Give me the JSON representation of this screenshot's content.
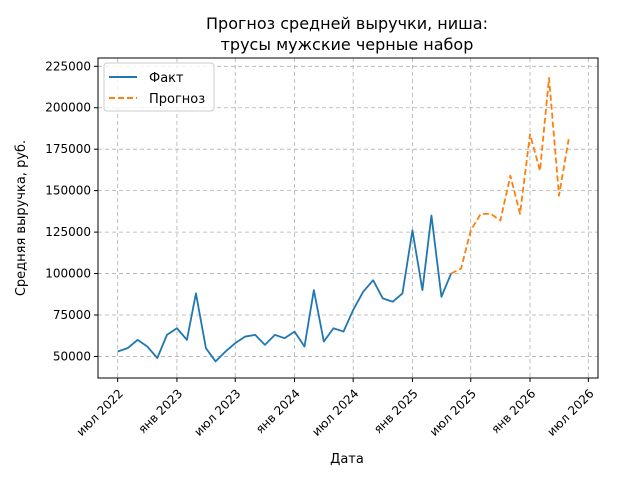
{
  "chart_data": {
    "type": "line",
    "title": "Прогноз средней выручки, ниша:",
    "subtitle": "трусы мужские черные набор",
    "xlabel": "Дата",
    "ylabel": "Средняя выручка, руб.",
    "ylim": [
      37000,
      230000
    ],
    "xlim": [
      "2022-05-01",
      "2026-07-31"
    ],
    "grid": true,
    "legend_position": "top-left",
    "x_ticks": [
      {
        "date": "2022-07-01",
        "label": "июл 2022"
      },
      {
        "date": "2023-01-01",
        "label": "янв 2023"
      },
      {
        "date": "2023-07-01",
        "label": "июл 2023"
      },
      {
        "date": "2024-01-01",
        "label": "янв 2024"
      },
      {
        "date": "2024-07-01",
        "label": "июл 2024"
      },
      {
        "date": "2025-01-01",
        "label": "янв 2025"
      },
      {
        "date": "2025-07-01",
        "label": "июл 2025"
      },
      {
        "date": "2026-01-01",
        "label": "янв 2026"
      },
      {
        "date": "2026-07-01",
        "label": "июл 2026"
      }
    ],
    "y_ticks": [
      {
        "value": 50000,
        "label": "50000"
      },
      {
        "value": 75000,
        "label": "75000"
      },
      {
        "value": 100000,
        "label": "100000"
      },
      {
        "value": 125000,
        "label": "125000"
      },
      {
        "value": 150000,
        "label": "150000"
      },
      {
        "value": 175000,
        "label": "175000"
      },
      {
        "value": 200000,
        "label": "200000"
      },
      {
        "value": 225000,
        "label": "225000"
      }
    ],
    "series": [
      {
        "name": "Факт",
        "color": "#1f77b4",
        "style": "solid",
        "points": [
          {
            "x": "2022-07-01",
            "y": 53000
          },
          {
            "x": "2022-08-01",
            "y": 55000
          },
          {
            "x": "2022-09-01",
            "y": 60000
          },
          {
            "x": "2022-10-01",
            "y": 56000
          },
          {
            "x": "2022-11-01",
            "y": 49000
          },
          {
            "x": "2022-12-01",
            "y": 63000
          },
          {
            "x": "2023-01-01",
            "y": 67000
          },
          {
            "x": "2023-02-01",
            "y": 60000
          },
          {
            "x": "2023-03-01",
            "y": 88000
          },
          {
            "x": "2023-04-01",
            "y": 55000
          },
          {
            "x": "2023-05-01",
            "y": 47000
          },
          {
            "x": "2023-06-01",
            "y": 53000
          },
          {
            "x": "2023-07-01",
            "y": 58000
          },
          {
            "x": "2023-08-01",
            "y": 62000
          },
          {
            "x": "2023-09-01",
            "y": 63000
          },
          {
            "x": "2023-10-01",
            "y": 57000
          },
          {
            "x": "2023-11-01",
            "y": 63000
          },
          {
            "x": "2023-12-01",
            "y": 61000
          },
          {
            "x": "2024-01-01",
            "y": 65000
          },
          {
            "x": "2024-02-01",
            "y": 56000
          },
          {
            "x": "2024-03-01",
            "y": 90000
          },
          {
            "x": "2024-04-01",
            "y": 59000
          },
          {
            "x": "2024-05-01",
            "y": 67000
          },
          {
            "x": "2024-06-01",
            "y": 65000
          },
          {
            "x": "2024-07-01",
            "y": 78000
          },
          {
            "x": "2024-08-01",
            "y": 89000
          },
          {
            "x": "2024-09-01",
            "y": 96000
          },
          {
            "x": "2024-10-01",
            "y": 85000
          },
          {
            "x": "2024-11-01",
            "y": 83000
          },
          {
            "x": "2024-12-01",
            "y": 88000
          },
          {
            "x": "2025-01-01",
            "y": 126000
          },
          {
            "x": "2025-02-01",
            "y": 90000
          },
          {
            "x": "2025-03-01",
            "y": 135000
          },
          {
            "x": "2025-04-01",
            "y": 86000
          },
          {
            "x": "2025-05-01",
            "y": 100000
          }
        ]
      },
      {
        "name": "Прогноз",
        "color": "#ff7f0e",
        "style": "dashed",
        "points": [
          {
            "x": "2025-05-01",
            "y": 100000
          },
          {
            "x": "2025-06-01",
            "y": 103000
          },
          {
            "x": "2025-07-01",
            "y": 126000
          },
          {
            "x": "2025-08-01",
            "y": 136000
          },
          {
            "x": "2025-09-01",
            "y": 136000
          },
          {
            "x": "2025-10-01",
            "y": 132000
          },
          {
            "x": "2025-11-01",
            "y": 159000
          },
          {
            "x": "2025-12-01",
            "y": 136000
          },
          {
            "x": "2026-01-01",
            "y": 184000
          },
          {
            "x": "2026-02-01",
            "y": 162000
          },
          {
            "x": "2026-03-01",
            "y": 218000
          },
          {
            "x": "2026-04-01",
            "y": 147000
          },
          {
            "x": "2026-05-01",
            "y": 181000
          }
        ]
      }
    ]
  }
}
